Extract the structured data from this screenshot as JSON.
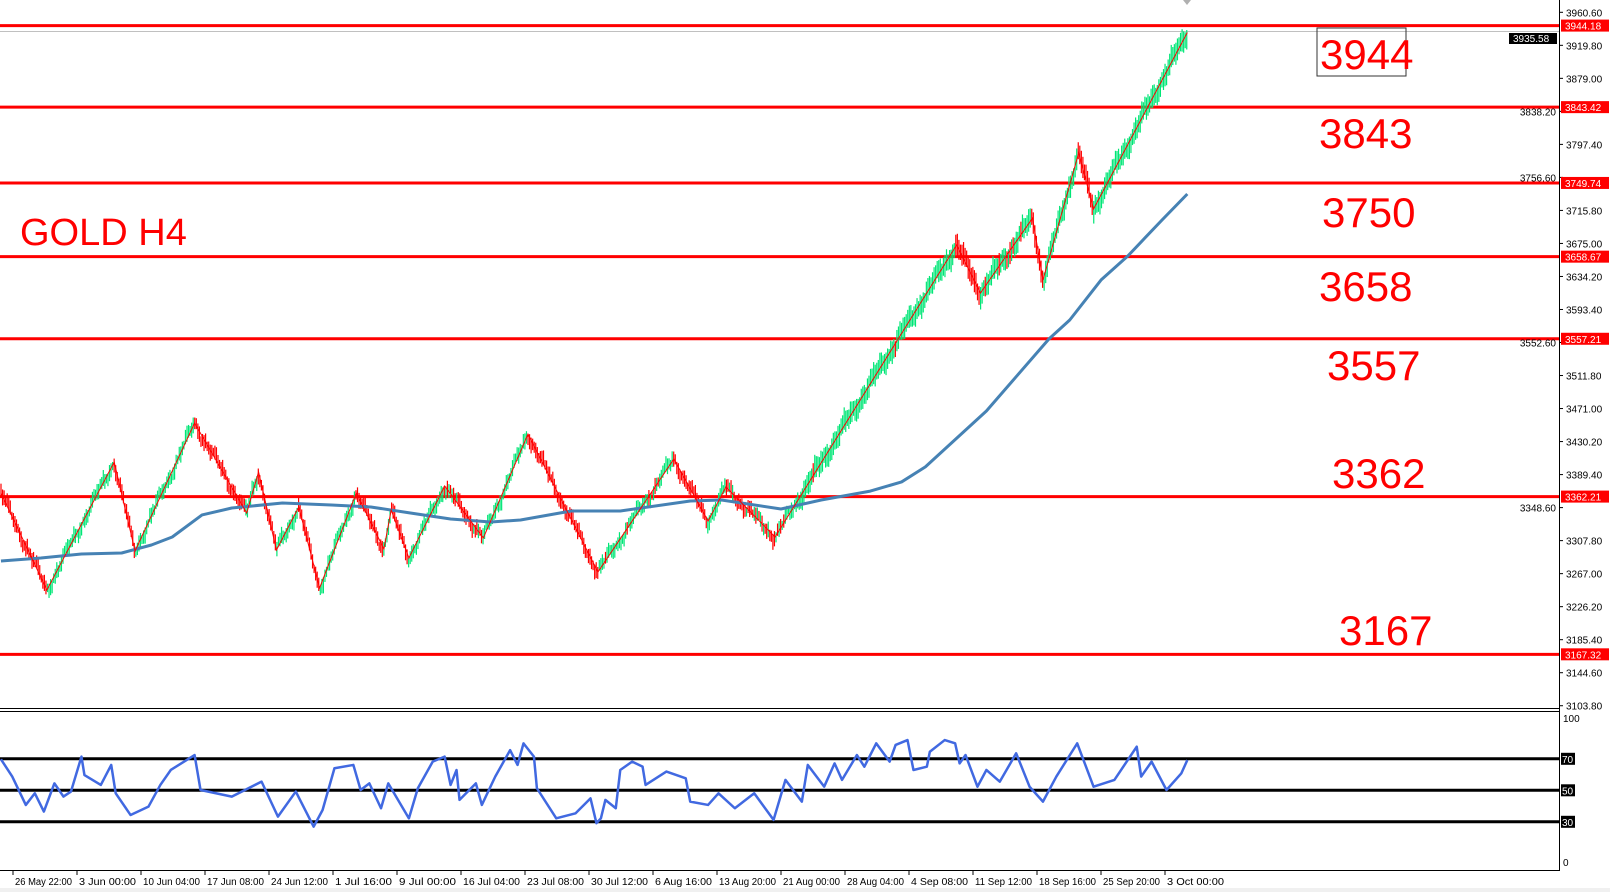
{
  "chart_data": [
    {
      "type": "line",
      "panel": "price",
      "title": "GOLD H4",
      "ylim": [
        3103.8,
        3960.6
      ],
      "grid": false,
      "y_ticks": [
        "3960.60",
        "3919.80",
        "3879.00",
        "3838.20",
        "3797.40",
        "3756.60",
        "3715.80",
        "3675.00",
        "3634.20",
        "3593.40",
        "3552.60",
        "3511.80",
        "3471.00",
        "3430.20",
        "3389.40",
        "3348.60",
        "3307.80",
        "3267.00",
        "3226.20",
        "3185.40",
        "3144.60",
        "3103.80"
      ],
      "x_ticks": [
        "26 May 22:00",
        "3 Jun 00:00",
        "10 Jun 04:00",
        "17 Jun 08:00",
        "24 Jun 12:00",
        "1 Jul 16:00",
        "9 Jul 00:00",
        "16 Jul 04:00",
        "23 Jul 08:00",
        "30 Jul 12:00",
        "6 Aug 16:00",
        "13 Aug 20:00",
        "21 Aug 00:00",
        "28 Aug 04:00",
        "4 Sep 08:00",
        "11 Sep 12:00",
        "18 Sep 16:00",
        "25 Sep 20:00",
        "3 Oct 00:00"
      ],
      "current_price": "3935.58",
      "levels": [
        {
          "value": "3944.18",
          "label": "3944",
          "boxed": true
        },
        {
          "value": "3843.42",
          "label": "3843",
          "boxed": false
        },
        {
          "value": "3749.74",
          "label": "3750",
          "boxed": false
        },
        {
          "value": "3658.67",
          "label": "3658",
          "boxed": false
        },
        {
          "value": "3557.21",
          "label": "3557",
          "boxed": false
        },
        {
          "value": "3362.21",
          "label": "3362",
          "boxed": false
        },
        {
          "value": "3167.32",
          "label": "3167",
          "boxed": false
        }
      ],
      "zigzag": [
        [
          "25 May 14:00",
          3366.6
        ],
        [
          "30 May 16:00",
          3246.8
        ],
        [
          "7 Jun 04:00",
          3404.9
        ],
        [
          "9 Jun 12:00",
          3295.0
        ],
        [
          "16 Jun 04:00",
          3453.1
        ],
        [
          "22 Jun 00:00",
          3341.9
        ],
        [
          "23 Jun 08:00",
          3392.6
        ],
        [
          "25 Jun 08:00",
          3296.2
        ],
        [
          "27 Jun 20:00",
          3349.4
        ],
        [
          "30 Jun 04:00",
          3249.3
        ],
        [
          "4 Jul 08:00",
          3366.6
        ],
        [
          "7 Jul 12:00",
          3297.5
        ],
        [
          "8 Jul 08:00",
          3345.6
        ],
        [
          "10 Jul 08:00",
          3286.3
        ],
        [
          "14 Jul 08:00",
          3375.3
        ],
        [
          "18 Jul 16:00",
          3311.0
        ],
        [
          "23 Jul 16:00",
          3439.5
        ],
        [
          "31 Jul 12:00",
          3269.0
        ],
        [
          "9 Aug 00:00",
          3408.7
        ],
        [
          "12 Aug 20:00",
          3332.0
        ],
        [
          "14 Aug 20:00",
          3374.1
        ],
        [
          "20 Aug 08:00",
          3312.3
        ],
        [
          "9 Sep 16:00",
          3673.1
        ],
        [
          "12 Sep 08:00",
          3613.8
        ],
        [
          "18 Sep 04:00",
          3706.4
        ],
        [
          "19 Sep 08:00",
          3629.8
        ],
        [
          "23 Sep 08:00",
          3786.8
        ],
        [
          "25 Sep 00:00",
          3717.6
        ],
        [
          "5 Oct 12:00",
          3935.6
        ]
      ],
      "moving_average": [
        [
          "25 May 14:00",
          3282.6
        ],
        [
          "30 May 00:00",
          3286.3
        ],
        [
          "3 Jun 12:00",
          3291.3
        ],
        [
          "8 Jun 00:00",
          3292.5
        ],
        [
          "11 Jun 08:00",
          3302.4
        ],
        [
          "13 Jun 16:00",
          3312.3
        ],
        [
          "17 Jun 00:00",
          3339.5
        ],
        [
          "20 Jun 08:00",
          3348.1
        ],
        [
          "26 Jun 00:00",
          3354.3
        ],
        [
          "1 Jul 12:00",
          3351.8
        ],
        [
          "6 Jul 00:00",
          3349.4
        ],
        [
          "10 Jul 12:00",
          3341.9
        ],
        [
          "15 Jul 00:00",
          3334.5
        ],
        [
          "19 Jul 12:00",
          3330.8
        ],
        [
          "22 Jul 20:00",
          3333.3
        ],
        [
          "28 Jul 12:00",
          3344.4
        ],
        [
          "3 Aug 00:00",
          3344.4
        ],
        [
          "10 Aug 20:00",
          3356.8
        ],
        [
          "14 Aug 08:00",
          3358.0
        ],
        [
          "21 Aug 00:00",
          3346.9
        ],
        [
          "25 Aug 12:00",
          3358.0
        ],
        [
          "31 Aug 00:00",
          3369.0
        ],
        [
          "3 Sep 12:00",
          3380.3
        ],
        [
          "6 Sep 04:00",
          3398.9
        ],
        [
          "13 Sep 00:00",
          3468.0
        ],
        [
          "20 Sep 00:00",
          3556.9
        ],
        [
          "22 Sep 08:00",
          3580.4
        ],
        [
          "25 Sep 20:00",
          3629.8
        ],
        [
          "28 Sep 20:00",
          3659.5
        ],
        [
          "2 Oct 16:00",
          3704.0
        ],
        [
          "5 Oct 12:00",
          3736.1
        ]
      ],
      "colors": {
        "level": "#ff0000",
        "zigzag": "#ff0000",
        "bar_up": "#00e676",
        "bar_down": "#ff0000",
        "moving_average": "#4682b4",
        "current_price_line": "#c0c0c0"
      }
    },
    {
      "type": "line",
      "panel": "oscillator",
      "ylim": [
        0,
        100
      ],
      "y_ticks": [
        "100",
        "70",
        "50",
        "30",
        "0"
      ],
      "levels": [
        "70",
        "50",
        "30"
      ],
      "values": [
        [
          "25 May 14:00",
          69.7
        ],
        [
          "26 May 20:00",
          58.7
        ],
        [
          "28 May 08:00",
          40.7
        ],
        [
          "29 May 08:00",
          48.1
        ],
        [
          "30 May 08:00",
          36.5
        ],
        [
          "31 May 12:00",
          54.4
        ],
        [
          "1 Jun 12:00",
          46.0
        ],
        [
          "2 Jun 08:00",
          49.2
        ],
        [
          "3 Jun 12:00",
          71.4
        ],
        [
          "3 Jun 20:00",
          59.7
        ],
        [
          "5 Jun 16:00",
          53.4
        ],
        [
          "6 Jun 20:00",
          66.1
        ],
        [
          "7 Jun 08:00",
          48.1
        ],
        [
          "9 Jun 00:00",
          34.3
        ],
        [
          "11 Jun 00:00",
          39.6
        ],
        [
          "12 Jun 08:00",
          53.4
        ],
        [
          "13 Jun 12:00",
          62.9
        ],
        [
          "16 Jun 04:00",
          72.4
        ],
        [
          "16 Jun 20:00",
          50.2
        ],
        [
          "20 Jun 08:00",
          46.0
        ],
        [
          "23 Jun 16:00",
          55.5
        ],
        [
          "25 Jun 12:00",
          33.3
        ],
        [
          "27 Jun 12:00",
          49.2
        ],
        [
          "29 Jun 12:00",
          26.9
        ],
        [
          "30 Jun 12:00",
          37.5
        ],
        [
          "1 Jul 20:00",
          64.0
        ],
        [
          "4 Jul 00:00",
          66.1
        ],
        [
          "4 Jul 20:00",
          50.2
        ],
        [
          "5 Jul 20:00",
          54.4
        ],
        [
          "7 Jul 04:00",
          38.6
        ],
        [
          "8 Jul 00:00",
          54.4
        ],
        [
          "10 Jul 08:00",
          32.2
        ],
        [
          "11 Jul 08:00",
          51.3
        ],
        [
          "13 Jul 00:00",
          68.2
        ],
        [
          "14 Jul 08:00",
          71.4
        ],
        [
          "15 Jul 00:00",
          53.4
        ],
        [
          "15 Jul 16:00",
          62.9
        ],
        [
          "16 Jul 00:00",
          43.9
        ],
        [
          "17 Jul 20:00",
          54.4
        ],
        [
          "18 Jul 12:00",
          40.7
        ],
        [
          "20 Jul 00:00",
          58.7
        ],
        [
          "21 Jul 16:00",
          75.5
        ],
        [
          "22 Jul 12:00",
          66.1
        ],
        [
          "23 Jul 04:00",
          79.8
        ],
        [
          "24 Jul 08:00",
          71.4
        ],
        [
          "24 Jul 16:00",
          51.3
        ],
        [
          "26 Jul 20:00",
          32.2
        ],
        [
          "29 Jul 00:00",
          35.4
        ],
        [
          "30 Jul 16:00",
          44.9
        ],
        [
          "31 Jul 08:00",
          29.1
        ],
        [
          "31 Jul 20:00",
          32.2
        ],
        [
          "1 Aug 08:00",
          43.9
        ],
        [
          "2 Aug 12:00",
          38.6
        ],
        [
          "3 Aug 00:00",
          62.9
        ],
        [
          "4 Aug 08:00",
          68.2
        ],
        [
          "5 Aug 12:00",
          65.0
        ],
        [
          "5 Aug 20:00",
          53.4
        ],
        [
          "8 Aug 04:00",
          61.9
        ],
        [
          "10 Aug 08:00",
          57.6
        ],
        [
          "10 Aug 20:00",
          42.8
        ],
        [
          "12 Aug 20:00",
          40.7
        ],
        [
          "14 Aug 00:00",
          48.1
        ],
        [
          "15 Aug 20:00",
          38.6
        ],
        [
          "18 Aug 00:00",
          48.1
        ],
        [
          "20 Aug 04:00",
          31.2
        ],
        [
          "21 Aug 12:00",
          56.6
        ],
        [
          "23 Aug 08:00",
          42.8
        ],
        [
          "24 Aug 00:00",
          66.1
        ],
        [
          "25 Aug 20:00",
          52.3
        ],
        [
          "27 Aug 00:00",
          67.1
        ],
        [
          "27 Aug 20:00",
          56.6
        ],
        [
          "29 Aug 12:00",
          72.4
        ],
        [
          "30 Aug 08:00",
          65.0
        ],
        [
          "31 Aug 16:00",
          79.8
        ],
        [
          "2 Sep 04:00",
          68.2
        ],
        [
          "2 Sep 20:00",
          78.8
        ],
        [
          "4 Sep 04:00",
          81.9
        ],
        [
          "4 Sep 20:00",
          62.9
        ],
        [
          "6 Sep 08:00",
          65.0
        ],
        [
          "6 Sep 16:00",
          74.5
        ],
        [
          "8 Sep 08:00",
          81.9
        ],
        [
          "9 Sep 12:00",
          79.8
        ],
        [
          "10 Sep 00:00",
          67.1
        ],
        [
          "10 Sep 16:00",
          72.4
        ],
        [
          "12 Sep 00:00",
          52.3
        ],
        [
          "13 Sep 00:00",
          62.9
        ],
        [
          "14 Sep 12:00",
          55.5
        ],
        [
          "16 Sep 08:00",
          73.5
        ],
        [
          "17 Sep 20:00",
          52.3
        ],
        [
          "19 Sep 08:00",
          42.8
        ],
        [
          "20 Sep 20:00",
          58.7
        ],
        [
          "23 Sep 04:00",
          79.8
        ],
        [
          "25 Sep 00:00",
          52.3
        ],
        [
          "27 Sep 08:00",
          56.6
        ],
        [
          "29 Sep 20:00",
          77.7
        ],
        [
          "30 Sep 08:00",
          58.7
        ],
        [
          "1 Oct 12:00",
          68.2
        ],
        [
          "3 Oct 04:00",
          50.2
        ],
        [
          "4 Oct 20:00",
          60.8
        ],
        [
          "5 Oct 12:00",
          69.2
        ]
      ],
      "colors": {
        "line": "#4169e1",
        "levels": "#000000"
      }
    }
  ]
}
